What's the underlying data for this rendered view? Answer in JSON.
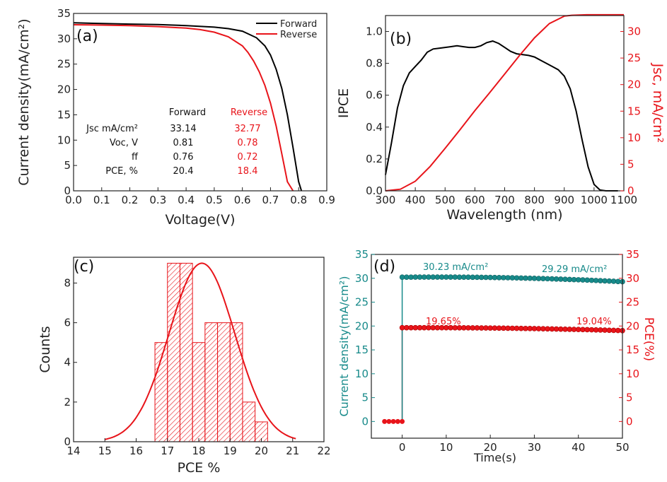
{
  "chart_data": [
    {
      "panel": "(a)",
      "type": "line",
      "xlabel": "Voltage(V)",
      "ylabel": "Current density(mA/cm²)",
      "xlim": [
        0,
        0.9
      ],
      "ylim": [
        0,
        35
      ],
      "xticks": [
        "0.0",
        "0.1",
        "0.2",
        "0.3",
        "0.4",
        "0.5",
        "0.6",
        "0.7",
        "0.8",
        "0.9"
      ],
      "yticks": [
        "0",
        "5",
        "10",
        "15",
        "20",
        "25",
        "30",
        "35"
      ],
      "legend": {
        "position": "top-right",
        "entries": [
          "Forward",
          "Reverse"
        ]
      },
      "series": [
        {
          "name": "Forward",
          "color": "#000000",
          "x": [
            0,
            0.1,
            0.2,
            0.3,
            0.4,
            0.5,
            0.55,
            0.6,
            0.65,
            0.68,
            0.7,
            0.72,
            0.74,
            0.76,
            0.78,
            0.8,
            0.81
          ],
          "y": [
            33.14,
            33.0,
            32.9,
            32.8,
            32.6,
            32.3,
            32.0,
            31.5,
            30.2,
            28.6,
            26.8,
            24.0,
            20.2,
            15.0,
            8.5,
            1.8,
            0
          ]
        },
        {
          "name": "Reverse",
          "color": "#e8141a",
          "x": [
            0,
            0.1,
            0.2,
            0.3,
            0.4,
            0.45,
            0.5,
            0.55,
            0.6,
            0.62,
            0.64,
            0.66,
            0.68,
            0.7,
            0.72,
            0.74,
            0.76,
            0.78
          ],
          "y": [
            32.77,
            32.7,
            32.6,
            32.4,
            32.1,
            31.8,
            31.3,
            30.4,
            28.6,
            27.3,
            25.6,
            23.5,
            20.8,
            17.3,
            12.8,
            7.3,
            1.8,
            0
          ]
        }
      ],
      "table": {
        "headers": [
          "",
          "Forward",
          "Reverse"
        ],
        "rows": [
          {
            "label": "Jsc mA/cm²",
            "forward": "33.14",
            "reverse": "32.77"
          },
          {
            "label": "Voc, V",
            "forward": "0.81",
            "reverse": "0.78"
          },
          {
            "label": "ff",
            "forward": "0.76",
            "reverse": "0.72"
          },
          {
            "label": "PCE, %",
            "forward": "20.4",
            "reverse": "18.4"
          }
        ]
      }
    },
    {
      "panel": "(b)",
      "type": "line",
      "xlabel": "Wavelength (nm)",
      "ylabel": "IPCE",
      "y2label": "Jsc, mA/cm²",
      "xlim": [
        300,
        1100
      ],
      "ylim": [
        0,
        1.1
      ],
      "y2lim": [
        0,
        33
      ],
      "xticks": [
        "300",
        "400",
        "500",
        "600",
        "700",
        "800",
        "900",
        "1000",
        "1100"
      ],
      "yticks": [
        "0.0",
        "0.2",
        "0.4",
        "0.6",
        "0.8",
        "1.0"
      ],
      "y2ticks": [
        "0",
        "5",
        "10",
        "15",
        "20",
        "25",
        "30"
      ],
      "series": [
        {
          "name": "IPCE",
          "color": "#000000",
          "axis": "left",
          "x": [
            300,
            320,
            340,
            360,
            380,
            400,
            420,
            440,
            460,
            480,
            500,
            520,
            540,
            560,
            580,
            600,
            620,
            640,
            660,
            680,
            700,
            720,
            740,
            760,
            780,
            800,
            820,
            840,
            860,
            880,
            900,
            920,
            940,
            960,
            980,
            1000,
            1020,
            1040,
            1060,
            1080
          ],
          "y": [
            0.1,
            0.3,
            0.52,
            0.66,
            0.74,
            0.78,
            0.82,
            0.87,
            0.89,
            0.895,
            0.9,
            0.905,
            0.91,
            0.905,
            0.9,
            0.9,
            0.91,
            0.93,
            0.94,
            0.925,
            0.9,
            0.875,
            0.86,
            0.855,
            0.85,
            0.84,
            0.82,
            0.8,
            0.78,
            0.76,
            0.72,
            0.64,
            0.5,
            0.32,
            0.15,
            0.04,
            0.005,
            0,
            0,
            0
          ]
        },
        {
          "name": "Jsc",
          "color": "#e8141a",
          "axis": "right",
          "x": [
            300,
            350,
            400,
            450,
            500,
            550,
            600,
            650,
            700,
            750,
            800,
            850,
            900,
            925,
            950,
            975,
            1000,
            1050,
            1100
          ],
          "y": [
            0,
            0.3,
            1.8,
            4.6,
            8.0,
            11.5,
            15.1,
            18.5,
            22.0,
            25.5,
            28.8,
            31.5,
            32.9,
            33.05,
            33.1,
            33.14,
            33.14,
            33.14,
            33.14
          ]
        }
      ]
    },
    {
      "panel": "(c)",
      "type": "bar",
      "xlabel": "PCE %",
      "ylabel": "Counts",
      "xlim": [
        14,
        22
      ],
      "ylim": [
        0,
        9.3
      ],
      "xticks": [
        "14",
        "15",
        "16",
        "17",
        "18",
        "19",
        "20",
        "21",
        "22"
      ],
      "yticks": [
        "0",
        "2",
        "4",
        "6",
        "8"
      ],
      "bars": {
        "color": "#e8141a",
        "bin_width": 0.4,
        "centers": [
          16.8,
          17.2,
          17.6,
          18.0,
          18.4,
          18.8,
          19.2,
          19.6,
          20.0
        ],
        "counts": [
          5,
          9,
          9,
          5,
          6,
          6,
          6,
          2,
          1
        ]
      },
      "fit": {
        "type": "gaussian",
        "mean": 18.1,
        "sigma": 1.05,
        "peak": 9.0,
        "color": "#e8141a",
        "xrange": [
          15.0,
          21.1
        ]
      }
    },
    {
      "panel": "(d)",
      "type": "scatter",
      "xlabel": "Time(s)",
      "ylabel": "Current density(mA/cm²)",
      "y2label": "PCE(%)",
      "xlim": [
        -7,
        50
      ],
      "ylim": [
        -3.5,
        35
      ],
      "xticks": [
        "0",
        "10",
        "20",
        "30",
        "40",
        "50"
      ],
      "yticks": [
        "0",
        "5",
        "10",
        "15",
        "20",
        "25",
        "30",
        "35"
      ],
      "y2ticks": [
        "0",
        "5",
        "10",
        "15",
        "20",
        "25",
        "30",
        "35"
      ],
      "annotations": [
        "30.23 mA/cm²",
        "29.29 mA/cm²",
        "19.65%",
        "19.04%"
      ],
      "series": [
        {
          "name": "Current density",
          "color": "#178a8a",
          "start": 30.23,
          "end": 29.29,
          "mid": 30.4,
          "x_from": 0,
          "x_to": 50,
          "step": 1
        },
        {
          "name": "PCE",
          "color": "#e8141a",
          "start": 19.65,
          "end": 19.04,
          "mid": 19.7,
          "x_from": 0,
          "x_to": 50,
          "step": 1,
          "pre": {
            "x": [
              -4,
              -3,
              -2,
              -1,
              0
            ],
            "y": [
              0,
              0,
              0,
              0,
              0
            ]
          }
        }
      ]
    }
  ]
}
